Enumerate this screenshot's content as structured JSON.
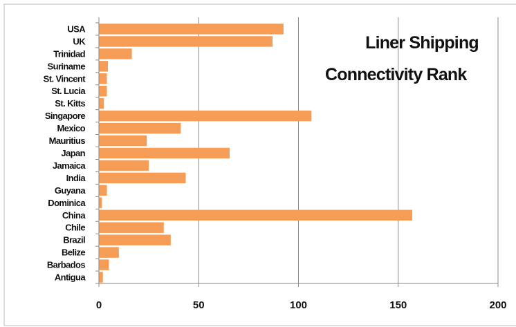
{
  "chart_data": {
    "type": "bar",
    "orientation": "horizontal",
    "title_lines": [
      "Liner Shipping",
      "Connectivity Rank"
    ],
    "categories": [
      "USA",
      "UK",
      "Trinidad",
      "Suriname",
      "St. Vincent",
      "St. Lucia",
      "St. Kitts",
      "Singapore",
      "Mexico",
      "Mauritius",
      "Japan",
      "Jamaica",
      "India",
      "Guyana",
      "Dominica",
      "China",
      "Chile",
      "Brazil",
      "Belize",
      "Barbados",
      "Antigua"
    ],
    "values": [
      92.5,
      87,
      16.5,
      4.5,
      4,
      4,
      2.5,
      106.5,
      41,
      24,
      65.5,
      25,
      43.5,
      4,
      1.5,
      157,
      32.5,
      36,
      10,
      5,
      2
    ],
    "xlim": [
      0,
      200
    ],
    "xticks": [
      "0",
      "50",
      "100",
      "150",
      "200"
    ],
    "grid": true,
    "bar_color": "#f59d56",
    "xlabel": "",
    "ylabel": ""
  }
}
